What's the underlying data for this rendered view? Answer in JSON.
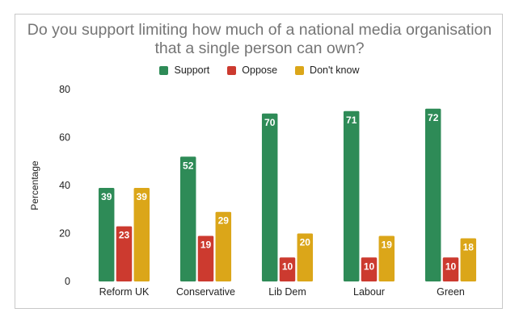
{
  "chart_data": {
    "type": "bar",
    "title": "Do you support limiting how much of a national media organisation that a single person can own?",
    "title_lines": [
      "Do you support limiting how much of a national media organisation",
      "that a single person can own?"
    ],
    "xlabel": "",
    "ylabel": "Percentage",
    "ylim": [
      0,
      80
    ],
    "yticks": [
      0,
      20,
      40,
      60,
      80
    ],
    "grid": false,
    "legend_position": "top-center",
    "categories": [
      "Reform UK",
      "Conservative",
      "Lib Dem",
      "Labour",
      "Green"
    ],
    "series": [
      {
        "name": "Support",
        "color": "#2e8b57",
        "values": [
          39,
          52,
          70,
          71,
          72
        ]
      },
      {
        "name": "Oppose",
        "color": "#cc3a2f",
        "values": [
          23,
          19,
          10,
          10,
          10
        ]
      },
      {
        "name": "Don't know",
        "color": "#dba619",
        "values": [
          39,
          29,
          20,
          19,
          18
        ]
      }
    ]
  }
}
